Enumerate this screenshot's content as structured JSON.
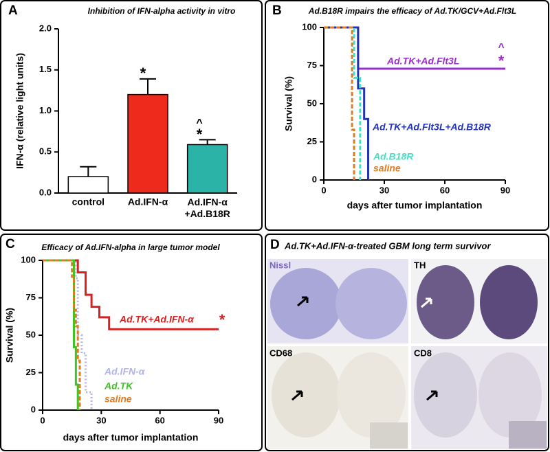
{
  "chart_data": [
    {
      "type": "bar",
      "panel_label": "A",
      "title": "Inhibition of IFN-alpha activity in vitro",
      "y_label": "IFN-α (relative light units)",
      "categories": [
        "control",
        "Ad.IFN-α",
        "Ad.IFN-α\n+Ad.B18R"
      ],
      "values": [
        0.2,
        1.2,
        0.59
      ],
      "errors": [
        0.12,
        0.19,
        0.06
      ],
      "colors": [
        "#ffffff",
        "#ee2a1c",
        "#2ab3a6"
      ],
      "ylim": [
        0,
        2
      ],
      "yticks": [
        {
          "value": 0,
          "label": "0.0"
        },
        {
          "value": 0.5,
          "label": "0.5"
        },
        {
          "value": 1,
          "label": "1.0"
        },
        {
          "value": 1.5,
          "label": "1.5"
        },
        {
          "value": 2,
          "label": "2.0"
        }
      ],
      "annotations": [
        "*",
        "^",
        "*"
      ]
    },
    {
      "type": "line",
      "panel_label": "B",
      "title": "Ad.B18R impairs the efficacy of Ad.TK/GCV+Ad.Flt3L",
      "x_label": "days after tumor implantation",
      "y_label": "Survival (%)",
      "xlim": [
        0,
        90
      ],
      "xticks": [
        0,
        30,
        60,
        90
      ],
      "ylim": [
        0,
        100
      ],
      "yticks": [
        0,
        25,
        50,
        75,
        100
      ],
      "series": [
        {
          "name": "Ad.TK+Ad.Flt3L",
          "color": "#9a2fc9",
          "style": "solid",
          "x": [
            0,
            17,
            17,
            90
          ],
          "values": [
            100,
            100,
            73,
            73
          ]
        },
        {
          "name": "Ad.TK+Ad.Flt3L+Ad.B18R",
          "color": "#2233b3",
          "style": "solid",
          "x": [
            0,
            17,
            17,
            20,
            20,
            22,
            22
          ],
          "values": [
            100,
            100,
            60,
            60,
            40,
            40,
            0
          ]
        },
        {
          "name": "Ad.B18R",
          "color": "#45e0c3",
          "style": "dashed",
          "x": [
            0,
            15,
            15,
            18,
            18
          ],
          "values": [
            100,
            100,
            67,
            67,
            0
          ]
        },
        {
          "name": "saline",
          "color": "#e07c22",
          "style": "dashed",
          "x": [
            0,
            14,
            14,
            15,
            15
          ],
          "values": [
            100,
            100,
            33,
            33,
            0
          ]
        }
      ],
      "annotations": [
        "^",
        "*"
      ]
    },
    {
      "type": "line",
      "panel_label": "C",
      "title": "Efficacy of Ad.IFN-alpha in large tumor model",
      "x_label": "days after tumor implantation",
      "y_label": "Survival (%)",
      "xlim": [
        0,
        90
      ],
      "xticks": [
        0,
        30,
        60,
        90
      ],
      "ylim": [
        0,
        100
      ],
      "yticks": [
        0,
        25,
        50,
        75,
        100
      ],
      "series": [
        {
          "name": "Ad.TK+Ad.IFN-α",
          "color": "#d42222",
          "style": "solid",
          "x": [
            0,
            18,
            18,
            22,
            22,
            25,
            25,
            29,
            29,
            34,
            34,
            90
          ],
          "values": [
            100,
            100,
            92,
            92,
            77,
            77,
            69,
            69,
            62,
            62,
            54,
            54
          ]
        },
        {
          "name": "Ad.IFN-α",
          "color": "#b3b3ea",
          "style": "dotted",
          "x": [
            0,
            17,
            17,
            18,
            18,
            20,
            20,
            22,
            22,
            25,
            25
          ],
          "values": [
            100,
            100,
            88,
            88,
            50,
            50,
            38,
            38,
            12,
            12,
            0
          ]
        },
        {
          "name": "Ad.TK",
          "color": "#3fc423",
          "style": "solid",
          "x": [
            0,
            16,
            16,
            17,
            17,
            18,
            18
          ],
          "values": [
            100,
            100,
            42,
            42,
            17,
            17,
            0
          ]
        },
        {
          "name": "saline",
          "color": "#e07c22",
          "style": "dashed",
          "x": [
            0,
            15,
            15,
            16,
            16,
            17,
            17,
            18,
            18,
            19,
            19
          ],
          "values": [
            100,
            100,
            89,
            89,
            67,
            67,
            56,
            56,
            33,
            33,
            0
          ]
        }
      ],
      "annotations": [
        "*"
      ]
    }
  ],
  "image_panel": {
    "panel_label": "D",
    "title": "Ad.TK+Ad.IFN-α-treated GBM long term survivor",
    "stains": [
      "Nissl",
      "TH",
      "CD68",
      "CD8"
    ]
  }
}
